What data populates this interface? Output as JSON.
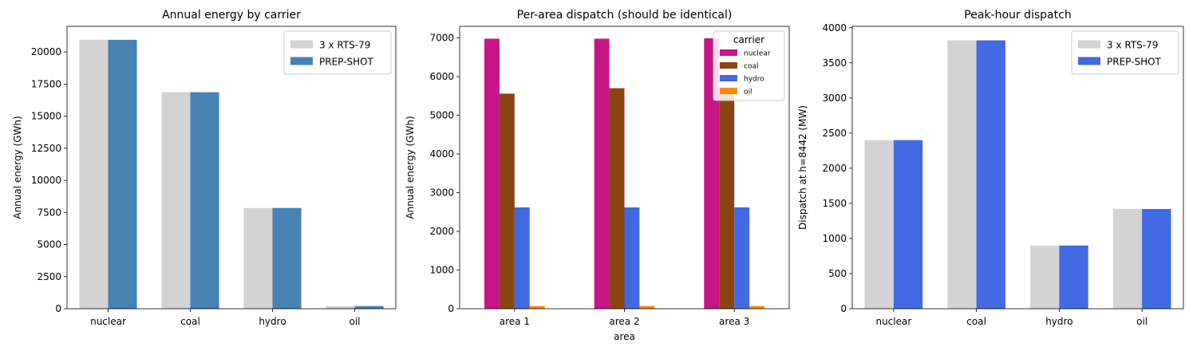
{
  "chart_data": [
    {
      "type": "bar",
      "title": "Annual energy by carrier",
      "xlabel": "",
      "ylabel": "Annual energy (GWh)",
      "categories": [
        "nuclear",
        "coal",
        "hydro",
        "oil"
      ],
      "series": [
        {
          "name": "3 x RTS-79",
          "color": "#d3d3d3",
          "values": [
            20950,
            16870,
            7850,
            210
          ]
        },
        {
          "name": "PREP-SHOT",
          "color": "#4682b4",
          "values": [
            20950,
            16870,
            7850,
            210
          ]
        }
      ],
      "ylim": [
        0,
        22000
      ],
      "yticks": [
        0,
        2500,
        5000,
        7500,
        10000,
        12500,
        15000,
        17500,
        20000
      ],
      "legend": "top-right",
      "grid": false
    },
    {
      "type": "bar",
      "title": "Per-area dispatch (should be identical)",
      "xlabel": "area",
      "ylabel": "Annual energy (GWh)",
      "categories": [
        "area 1",
        "area 2",
        "area 3"
      ],
      "legend_title": "carrier",
      "series": [
        {
          "name": "nuclear",
          "color": "#c71585",
          "values": [
            6980,
            6980,
            6990
          ]
        },
        {
          "name": "coal",
          "color": "#8b4513",
          "values": [
            5560,
            5700,
            5610
          ]
        },
        {
          "name": "hydro",
          "color": "#4169e1",
          "values": [
            2620,
            2620,
            2620
          ]
        },
        {
          "name": "oil",
          "color": "#ff8c00",
          "values": [
            70,
            70,
            70
          ]
        }
      ],
      "ylim": [
        0,
        7300
      ],
      "yticks": [
        0,
        1000,
        2000,
        3000,
        4000,
        5000,
        6000,
        7000
      ],
      "legend": "top-right",
      "grid": false
    },
    {
      "type": "bar",
      "title": "Peak-hour dispatch",
      "xlabel": "",
      "ylabel": "Dispatch at h=8442 (MW)",
      "categories": [
        "nuclear",
        "coal",
        "hydro",
        "oil"
      ],
      "series": [
        {
          "name": "3 x RTS-79",
          "color": "#d3d3d3",
          "values": [
            2400,
            3820,
            900,
            1420
          ]
        },
        {
          "name": "PREP-SHOT",
          "color": "#4169e1",
          "values": [
            2400,
            3820,
            900,
            1420
          ]
        }
      ],
      "ylim": [
        0,
        4020
      ],
      "yticks": [
        0,
        500,
        1000,
        1500,
        2000,
        2500,
        3000,
        3500,
        4000
      ],
      "legend": "top-right",
      "grid": false
    }
  ]
}
